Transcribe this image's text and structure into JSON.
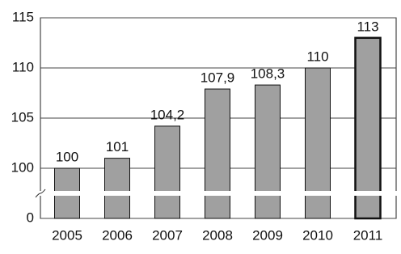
{
  "chart_data": {
    "type": "bar",
    "categories": [
      "2005",
      "2006",
      "2007",
      "2008",
      "2009",
      "2010",
      "2011"
    ],
    "values": [
      100,
      101,
      104.2,
      107.9,
      108.3,
      110,
      113
    ],
    "value_labels": [
      "100",
      "101",
      "104,2",
      "107,9",
      "108,3",
      "110",
      "113"
    ],
    "color": "#a0a0a0",
    "ylim": [
      0,
      115
    ],
    "y_break": [
      0,
      100
    ],
    "yticks": [
      0,
      100,
      105,
      110,
      115
    ],
    "grid": true,
    "highlight": "2011"
  }
}
